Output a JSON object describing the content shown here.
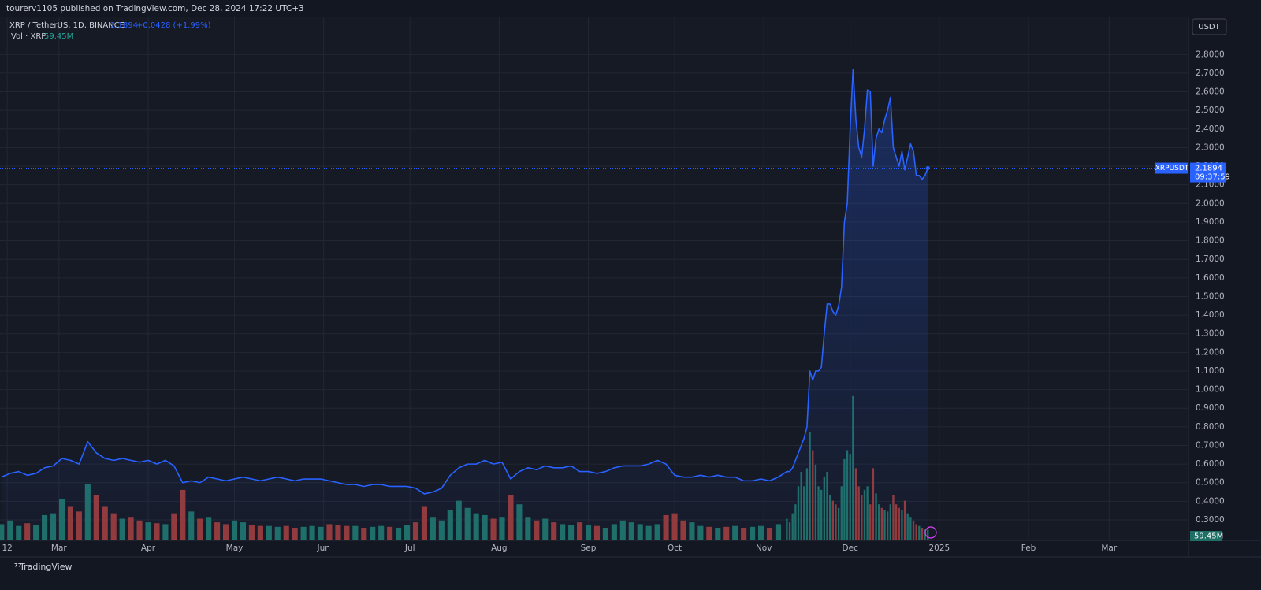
{
  "header": "tourerv1105 published on TradingView.com, Dec 28, 2024 17:22 UTC+3",
  "footer": "TradingView",
  "chart_data": {
    "type": "line",
    "title": "XRP / TetherUS, 1D, BINANCE",
    "change": "+0.0428 (+1.99%)",
    "currency": "USDT",
    "countdown": "09:37:59",
    "x": [
      -20,
      -17,
      -14,
      -11,
      -8,
      -5,
      -2,
      1,
      4,
      7,
      10,
      13,
      16,
      19,
      22,
      25,
      28,
      31,
      34,
      37,
      40,
      43,
      46,
      49,
      52,
      55,
      58,
      61,
      64,
      67,
      70,
      73,
      76,
      79,
      82,
      85,
      88,
      91,
      94,
      97,
      100,
      103,
      106,
      109,
      112,
      115,
      118,
      121,
      124,
      127,
      130,
      133,
      136,
      139,
      142,
      145,
      148,
      151,
      154,
      157,
      160,
      163,
      166,
      169,
      172,
      175,
      178,
      181,
      184,
      187,
      190,
      193,
      196,
      199,
      202,
      205,
      208,
      211,
      214,
      217,
      220,
      223,
      226,
      229,
      232,
      235,
      238,
      241,
      244,
      247,
      250,
      253,
      254,
      255,
      256,
      257,
      258,
      259,
      260,
      261,
      262,
      263,
      264,
      265,
      266,
      267,
      268,
      269,
      270,
      271,
      272,
      273,
      274,
      275,
      276,
      277,
      278,
      279,
      280,
      281,
      282,
      283,
      284,
      285,
      286,
      287,
      288,
      289,
      290,
      291,
      292,
      293,
      294,
      295,
      296,
      297,
      298,
      299,
      300,
      301,
      302
    ],
    "series": [
      {
        "name": "XRPUSDT",
        "color": "#2962ff",
        "values": [
          0.53,
          0.55,
          0.56,
          0.54,
          0.55,
          0.58,
          0.59,
          0.63,
          0.62,
          0.6,
          0.72,
          0.66,
          0.63,
          0.62,
          0.63,
          0.62,
          0.61,
          0.62,
          0.6,
          0.62,
          0.59,
          0.5,
          0.51,
          0.5,
          0.53,
          0.52,
          0.51,
          0.52,
          0.53,
          0.52,
          0.51,
          0.52,
          0.53,
          0.52,
          0.51,
          0.52,
          0.52,
          0.52,
          0.51,
          0.5,
          0.49,
          0.49,
          0.48,
          0.49,
          0.49,
          0.48,
          0.48,
          0.48,
          0.47,
          0.44,
          0.45,
          0.47,
          0.54,
          0.58,
          0.6,
          0.6,
          0.62,
          0.6,
          0.61,
          0.52,
          0.56,
          0.58,
          0.57,
          0.59,
          0.58,
          0.58,
          0.59,
          0.56,
          0.56,
          0.55,
          0.56,
          0.58,
          0.59,
          0.59,
          0.59,
          0.6,
          0.62,
          0.6,
          0.54,
          0.53,
          0.53,
          0.54,
          0.53,
          0.54,
          0.53,
          0.53,
          0.51,
          0.51,
          0.52,
          0.51,
          0.53,
          0.56,
          0.56,
          0.58,
          0.62,
          0.66,
          0.7,
          0.74,
          0.8,
          1.1,
          1.05,
          1.1,
          1.1,
          1.12,
          1.3,
          1.46,
          1.46,
          1.42,
          1.4,
          1.45,
          1.55,
          1.9,
          2.0,
          2.4,
          2.72,
          2.45,
          2.3,
          2.25,
          2.4,
          2.61,
          2.6,
          2.2,
          2.35,
          2.4,
          2.38,
          2.45,
          2.5,
          2.57,
          2.3,
          2.25,
          2.2,
          2.28,
          2.18,
          2.25,
          2.32,
          2.28,
          2.15,
          2.15,
          2.13,
          2.15,
          2.1894
        ]
      },
      {
        "name": "Vol · XRP",
        "axis": "y2",
        "up_color": "#1f6f67",
        "down_color": "#953a39",
        "last_value_label": "59.45M",
        "values": [
          90,
          110,
          80,
          95,
          85,
          140,
          150,
          230,
          190,
          160,
          310,
          250,
          190,
          150,
          120,
          130,
          110,
          100,
          95,
          90,
          150,
          280,
          160,
          120,
          130,
          100,
          90,
          110,
          100,
          85,
          80,
          80,
          75,
          80,
          70,
          75,
          80,
          75,
          90,
          85,
          80,
          80,
          70,
          75,
          80,
          75,
          70,
          85,
          100,
          190,
          130,
          110,
          170,
          220,
          180,
          150,
          140,
          120,
          130,
          250,
          200,
          130,
          110,
          120,
          100,
          90,
          85,
          100,
          85,
          80,
          70,
          90,
          110,
          100,
          90,
          80,
          90,
          140,
          150,
          110,
          100,
          80,
          75,
          70,
          75,
          80,
          70,
          75,
          80,
          70,
          90,
          120,
          100,
          150,
          200,
          300,
          380,
          300,
          400,
          600,
          500,
          420,
          300,
          280,
          350,
          380,
          250,
          220,
          200,
          180,
          300,
          450,
          500,
          480,
          800,
          400,
          300,
          250,
          280,
          300,
          200,
          400,
          260,
          200,
          180,
          170,
          160,
          200,
          250,
          200,
          180,
          170,
          220,
          150,
          130,
          110,
          90,
          80,
          70,
          60,
          59.45
        ]
      }
    ],
    "xlim": [
      -20.5,
      392.6
    ],
    "xticks": [
      {
        "value": -18,
        "label": "12"
      },
      {
        "value": 0,
        "label": "Mar"
      },
      {
        "value": 31,
        "label": "Apr"
      },
      {
        "value": 61,
        "label": "May"
      },
      {
        "value": 92,
        "label": "Jun"
      },
      {
        "value": 122,
        "label": "Jul"
      },
      {
        "value": 153,
        "label": "Aug"
      },
      {
        "value": 184,
        "label": "Sep"
      },
      {
        "value": 214,
        "label": "Oct"
      },
      {
        "value": 245,
        "label": "Nov"
      },
      {
        "value": 275,
        "label": "Dec"
      },
      {
        "value": 306,
        "label": "2025"
      },
      {
        "value": 337,
        "label": "Feb"
      },
      {
        "value": 365,
        "label": "Mar"
      }
    ],
    "ylim": [
      0.19,
      3.0
    ],
    "yticks": [
      {
        "value": 0.3,
        "label": "0.3000"
      },
      {
        "value": 0.4,
        "label": "0.4000"
      },
      {
        "value": 0.5,
        "label": "0.5000"
      },
      {
        "value": 0.6,
        "label": "0.6000"
      },
      {
        "value": 0.7,
        "label": "0.7000"
      },
      {
        "value": 0.8,
        "label": "0.8000"
      },
      {
        "value": 0.9,
        "label": "0.9000"
      },
      {
        "value": 1.0,
        "label": "1.0000"
      },
      {
        "value": 1.1,
        "label": "1.1000"
      },
      {
        "value": 1.2,
        "label": "1.2000"
      },
      {
        "value": 1.3,
        "label": "1.3000"
      },
      {
        "value": 1.4,
        "label": "1.4000"
      },
      {
        "value": 1.5,
        "label": "1.5000"
      },
      {
        "value": 1.6,
        "label": "1.6000"
      },
      {
        "value": 1.7,
        "label": "1.7000"
      },
      {
        "value": 1.8,
        "label": "1.8000"
      },
      {
        "value": 1.9,
        "label": "1.9000"
      },
      {
        "value": 2.0,
        "label": "2.0000"
      },
      {
        "value": 2.1,
        "label": "2.1000"
      },
      {
        "value": 2.2,
        "label": "2.2000"
      },
      {
        "value": 2.3,
        "label": "2.3000"
      },
      {
        "value": 2.4,
        "label": "2.4000"
      },
      {
        "value": 2.5,
        "label": "2.5000"
      },
      {
        "value": 2.6,
        "label": "2.6000"
      },
      {
        "value": 2.7,
        "label": "2.7000"
      },
      {
        "value": 2.8,
        "label": "2.8000"
      }
    ],
    "y2lim": [
      0,
      2900
    ],
    "grid": true
  }
}
